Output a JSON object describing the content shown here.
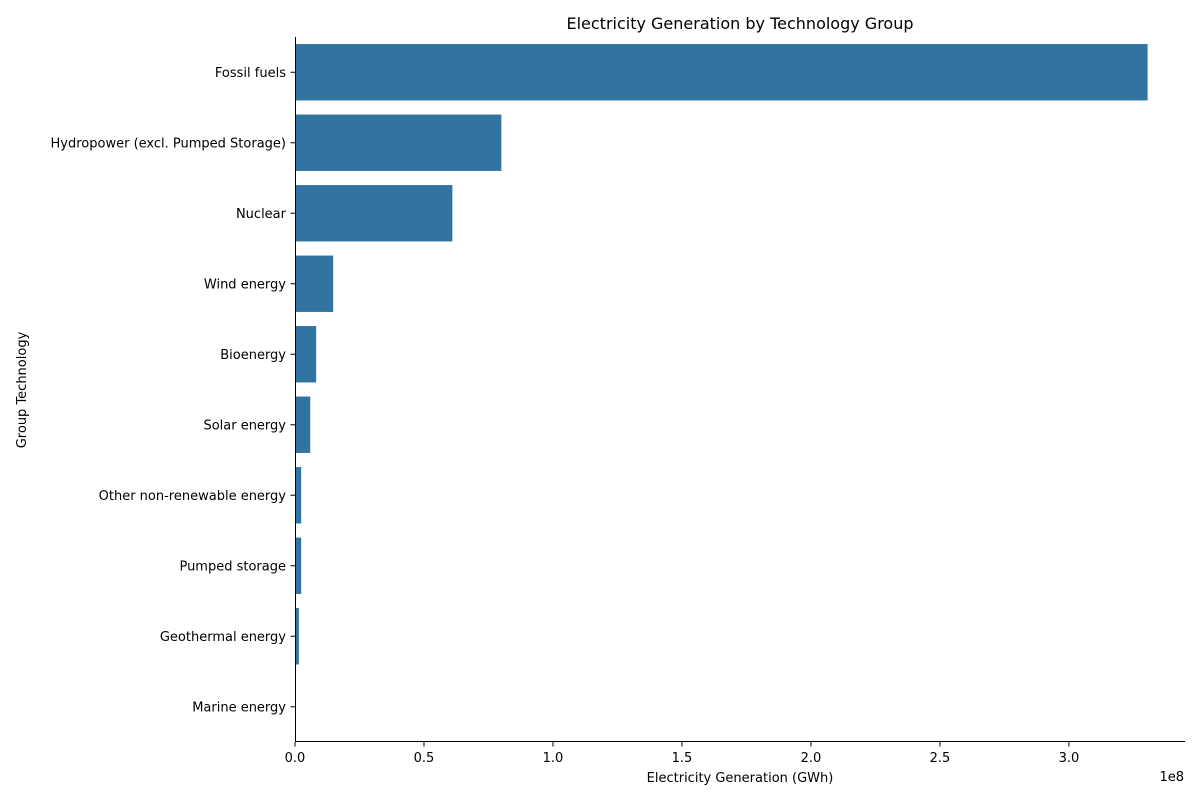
{
  "chart_data": {
    "type": "bar",
    "orientation": "horizontal",
    "title": "Electricity Generation by Technology Group",
    "xlabel": "Electricity Generation (GWh)",
    "ylabel": "Group Technology",
    "x_offset_label": "1e8",
    "x_scale": 100000000,
    "xlim": [
      0,
      345000000
    ],
    "x_ticks": [
      {
        "value": 0,
        "label": "0.0"
      },
      {
        "value": 50000000,
        "label": "0.5"
      },
      {
        "value": 100000000,
        "label": "1.0"
      },
      {
        "value": 150000000,
        "label": "1.5"
      },
      {
        "value": 200000000,
        "label": "2.0"
      },
      {
        "value": 250000000,
        "label": "2.5"
      },
      {
        "value": 300000000,
        "label": "3.0"
      }
    ],
    "categories": [
      "Fossil fuels",
      "Hydropower (excl. Pumped Storage)",
      "Nuclear",
      "Wind energy",
      "Bioenergy",
      "Solar energy",
      "Other non-renewable energy",
      "Pumped storage",
      "Geothermal energy",
      "Marine energy"
    ],
    "values": [
      330500000,
      80000000,
      61000000,
      14800000,
      8200000,
      5900000,
      2400000,
      2400000,
      1500000,
      100000
    ],
    "bar_color": "#3274a1",
    "grid": false,
    "legend": "none"
  }
}
